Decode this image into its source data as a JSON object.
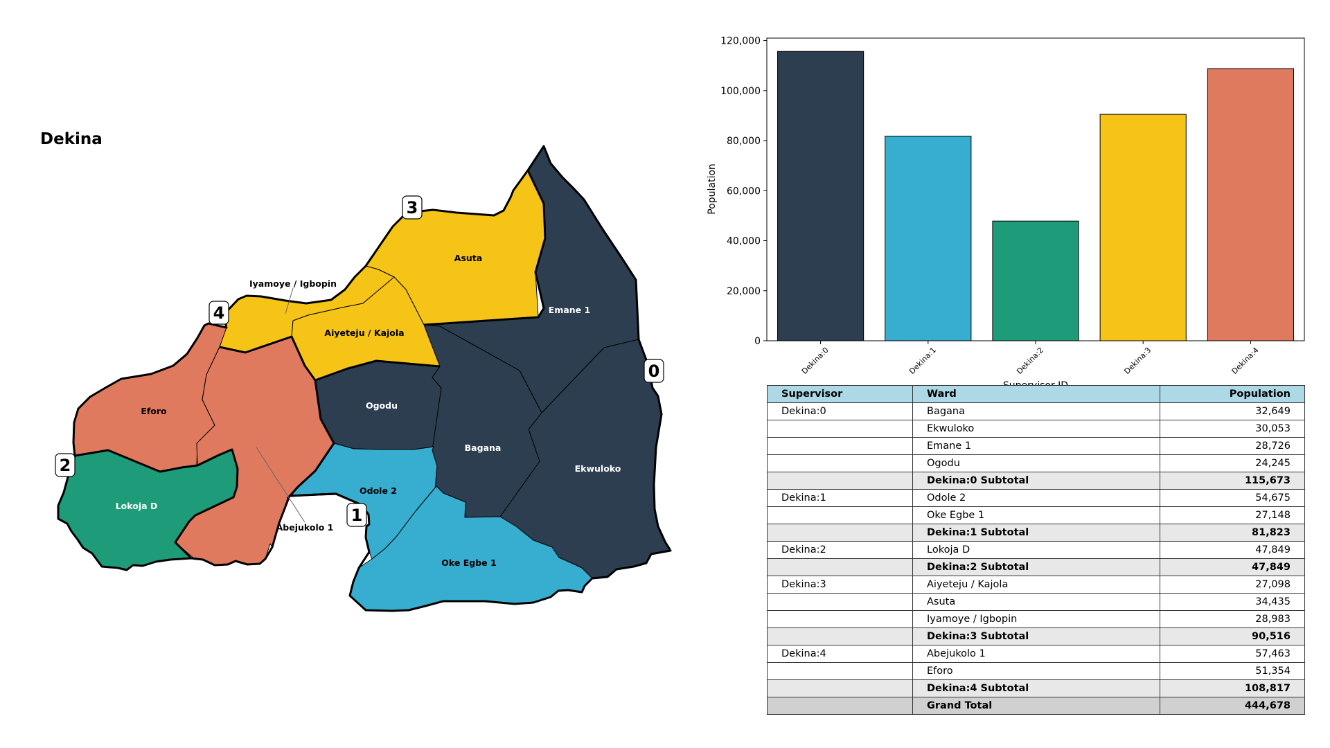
{
  "map": {
    "title": "Dekina",
    "wards": [
      {
        "name": "Asuta",
        "color": "#f6c416",
        "label_color": "#000000"
      },
      {
        "name": "Iyamoye / Igbopin",
        "color": "#f6c416",
        "label_color": "#000000"
      },
      {
        "name": "Aiyeteju / Kajola",
        "color": "#f6c416",
        "label_color": "#000000"
      },
      {
        "name": "Emane 1",
        "color": "#2c3e50",
        "label_color": "#ffffff"
      },
      {
        "name": "Ogodu",
        "color": "#2c3e50",
        "label_color": "#ffffff"
      },
      {
        "name": "Bagana",
        "color": "#2c3e50",
        "label_color": "#ffffff"
      },
      {
        "name": "Ekwuloko",
        "color": "#2c3e50",
        "label_color": "#ffffff"
      },
      {
        "name": "Eforo",
        "color": "#e07a5f",
        "label_color": "#000000"
      },
      {
        "name": "Abejukolo 1",
        "color": "#e07a5f",
        "label_color": "#000000"
      },
      {
        "name": "Lokoja D",
        "color": "#1e9b79",
        "label_color": "#ffffff"
      },
      {
        "name": "Odole 2",
        "color": "#37aecf",
        "label_color": "#000000"
      },
      {
        "name": "Oke Egbe 1",
        "color": "#37aecf",
        "label_color": "#000000"
      }
    ],
    "supervisor_badges": [
      "0",
      "1",
      "2",
      "3",
      "4"
    ]
  },
  "chart_data": {
    "type": "bar",
    "categories": [
      "Dekina:0",
      "Dekina:1",
      "Dekina:2",
      "Dekina:3",
      "Dekina:4"
    ],
    "values": [
      115673,
      81823,
      47849,
      90516,
      108817
    ],
    "colors": [
      "#2c3e50",
      "#37aecf",
      "#1e9b79",
      "#f6c416",
      "#e07a5f"
    ],
    "xlabel": "Supervisor ID",
    "ylabel": "Population",
    "ylim": [
      0,
      121000
    ],
    "yticks": [
      0,
      20000,
      40000,
      60000,
      80000,
      100000,
      120000
    ],
    "ytick_labels": [
      "0",
      "20,000",
      "40,000",
      "60,000",
      "80,000",
      "100,000",
      "120,000"
    ],
    "grid": false
  },
  "table": {
    "headers": {
      "supervisor": "Supervisor",
      "ward": "Ward",
      "population": "Population"
    },
    "rows": [
      {
        "supervisor": "Dekina:0",
        "ward": "Bagana",
        "population": "32,649",
        "type": "item"
      },
      {
        "supervisor": "",
        "ward": "Ekwuloko",
        "population": "30,053",
        "type": "item"
      },
      {
        "supervisor": "",
        "ward": "Emane 1",
        "population": "28,726",
        "type": "item"
      },
      {
        "supervisor": "",
        "ward": "Ogodu",
        "population": "24,245",
        "type": "item"
      },
      {
        "supervisor": "",
        "ward": "Dekina:0 Subtotal",
        "population": "115,673",
        "type": "subtotal"
      },
      {
        "supervisor": "Dekina:1",
        "ward": "Odole 2",
        "population": "54,675",
        "type": "item"
      },
      {
        "supervisor": "",
        "ward": "Oke Egbe 1",
        "population": "27,148",
        "type": "item"
      },
      {
        "supervisor": "",
        "ward": "Dekina:1 Subtotal",
        "population": "81,823",
        "type": "subtotal"
      },
      {
        "supervisor": "Dekina:2",
        "ward": "Lokoja D",
        "population": "47,849",
        "type": "item"
      },
      {
        "supervisor": "",
        "ward": "Dekina:2 Subtotal",
        "population": "47,849",
        "type": "subtotal"
      },
      {
        "supervisor": "Dekina:3",
        "ward": "Aiyeteju / Kajola",
        "population": "27,098",
        "type": "item"
      },
      {
        "supervisor": "",
        "ward": "Asuta",
        "population": "34,435",
        "type": "item"
      },
      {
        "supervisor": "",
        "ward": "Iyamoye / Igbopin",
        "population": "28,983",
        "type": "item"
      },
      {
        "supervisor": "",
        "ward": "Dekina:3 Subtotal",
        "population": "90,516",
        "type": "subtotal"
      },
      {
        "supervisor": "Dekina:4",
        "ward": "Abejukolo 1",
        "population": "57,463",
        "type": "item"
      },
      {
        "supervisor": "",
        "ward": "Eforo",
        "population": "51,354",
        "type": "item"
      },
      {
        "supervisor": "",
        "ward": "Dekina:4 Subtotal",
        "population": "108,817",
        "type": "subtotal"
      },
      {
        "supervisor": "",
        "ward": "Grand Total",
        "population": "444,678",
        "type": "grand"
      }
    ]
  }
}
